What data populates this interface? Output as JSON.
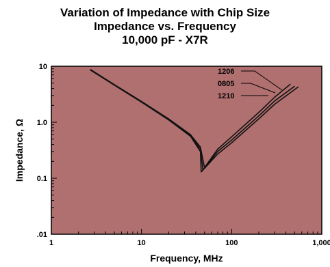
{
  "chart_data": {
    "type": "line",
    "title": "Variation of Impedance with Chip Size",
    "subtitle": "Impedance vs. Frequency",
    "subtitle2": "10,000 pF - X7R",
    "xlabel": "Frequency, MHz",
    "ylabel": "Impedance, Ω",
    "x_scale": "log",
    "y_scale": "log",
    "xlim": [
      1,
      1000
    ],
    "ylim": [
      0.01,
      10
    ],
    "x_ticks": [
      {
        "value": 1,
        "label": "1"
      },
      {
        "value": 10,
        "label": "10"
      },
      {
        "value": 100,
        "label": "100"
      },
      {
        "value": 1000,
        "label": "1,000"
      }
    ],
    "y_ticks": [
      {
        "value": 0.01,
        "label": ".01"
      },
      {
        "value": 0.1,
        "label": "0.1"
      },
      {
        "value": 1,
        "label": "1.0"
      },
      {
        "value": 10,
        "label": "10"
      }
    ],
    "plot_background": "#b07070",
    "line_color": "#111111",
    "grid": false,
    "series": [
      {
        "name": "1206",
        "x": [
          2.7,
          5,
          10,
          20,
          35,
          45,
          50,
          70,
          100,
          200,
          300,
          450
        ],
        "y": [
          8.8,
          4.7,
          2.35,
          1.15,
          0.6,
          0.36,
          0.155,
          0.33,
          0.55,
          1.5,
          2.8,
          4.8
        ]
      },
      {
        "name": "0805",
        "x": [
          2.7,
          5,
          10,
          20,
          35,
          45,
          48,
          70,
          100,
          200,
          300,
          500
        ],
        "y": [
          8.7,
          4.65,
          2.3,
          1.12,
          0.58,
          0.33,
          0.14,
          0.3,
          0.48,
          1.3,
          2.4,
          4.4
        ]
      },
      {
        "name": "1210",
        "x": [
          2.7,
          5,
          10,
          20,
          35,
          45,
          46,
          70,
          100,
          200,
          300,
          550
        ],
        "y": [
          8.6,
          4.6,
          2.28,
          1.1,
          0.56,
          0.3,
          0.13,
          0.27,
          0.43,
          1.15,
          2.1,
          4.3
        ]
      }
    ],
    "legend_labels": [
      "1206",
      "0805",
      "1210"
    ]
  }
}
